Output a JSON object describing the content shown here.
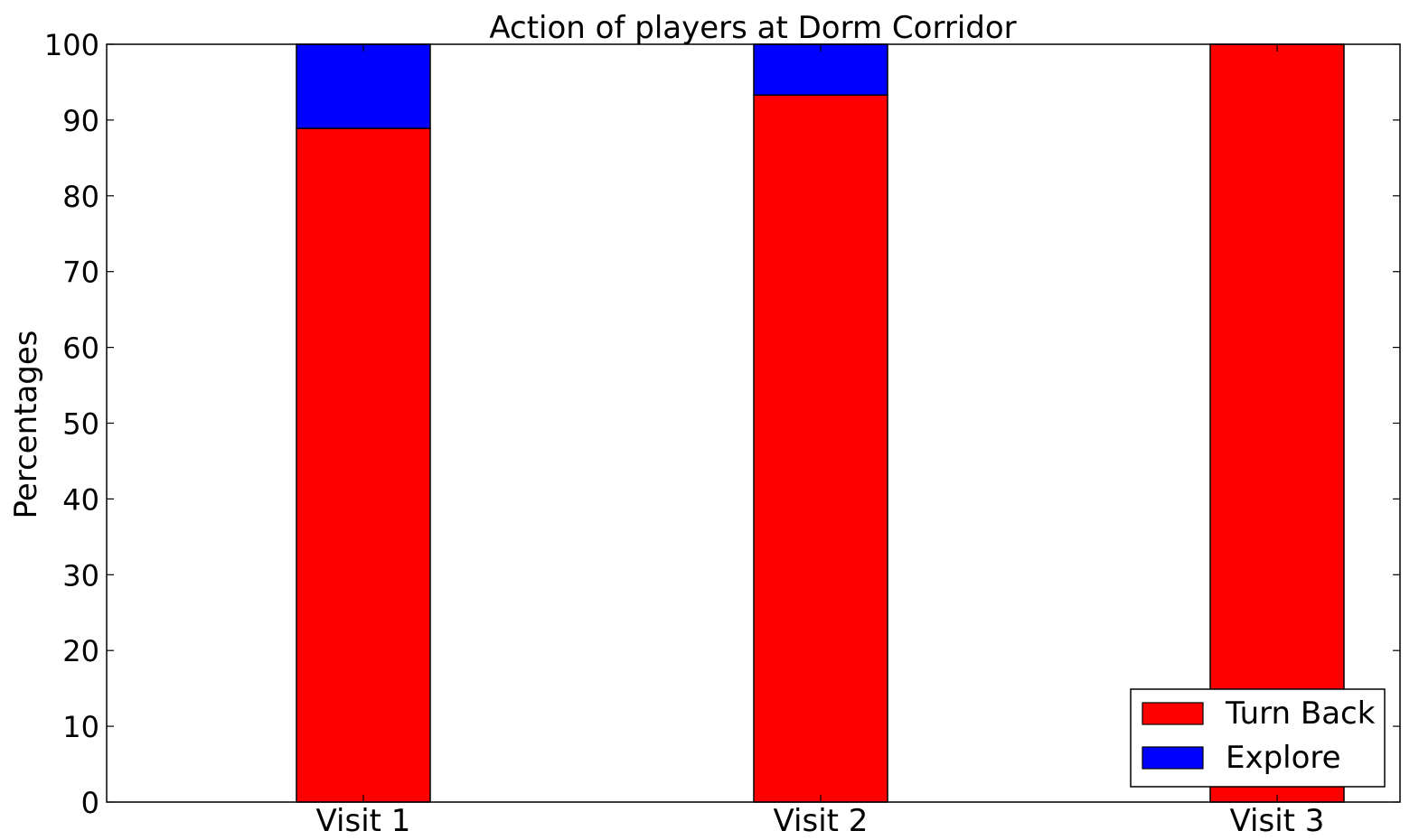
{
  "chart_data": {
    "type": "bar",
    "stacked": true,
    "title": "Action of players at Dorm Corridor",
    "xlabel": "",
    "ylabel": "Percentages",
    "categories": [
      "Visit 1",
      "Visit 2",
      "Visit 3"
    ],
    "series": [
      {
        "name": "Turn Back",
        "color": "#ff0000",
        "values": [
          88.9,
          93.3,
          100
        ]
      },
      {
        "name": "Explore",
        "color": "#0000ff",
        "values": [
          11.1,
          6.7,
          0
        ]
      }
    ],
    "ylim": [
      0,
      100
    ],
    "yticks": [
      "0",
      "10",
      "20",
      "30",
      "40",
      "50",
      "60",
      "70",
      "80",
      "90",
      "100"
    ],
    "grid": false,
    "legend_position": "bottom-right"
  }
}
